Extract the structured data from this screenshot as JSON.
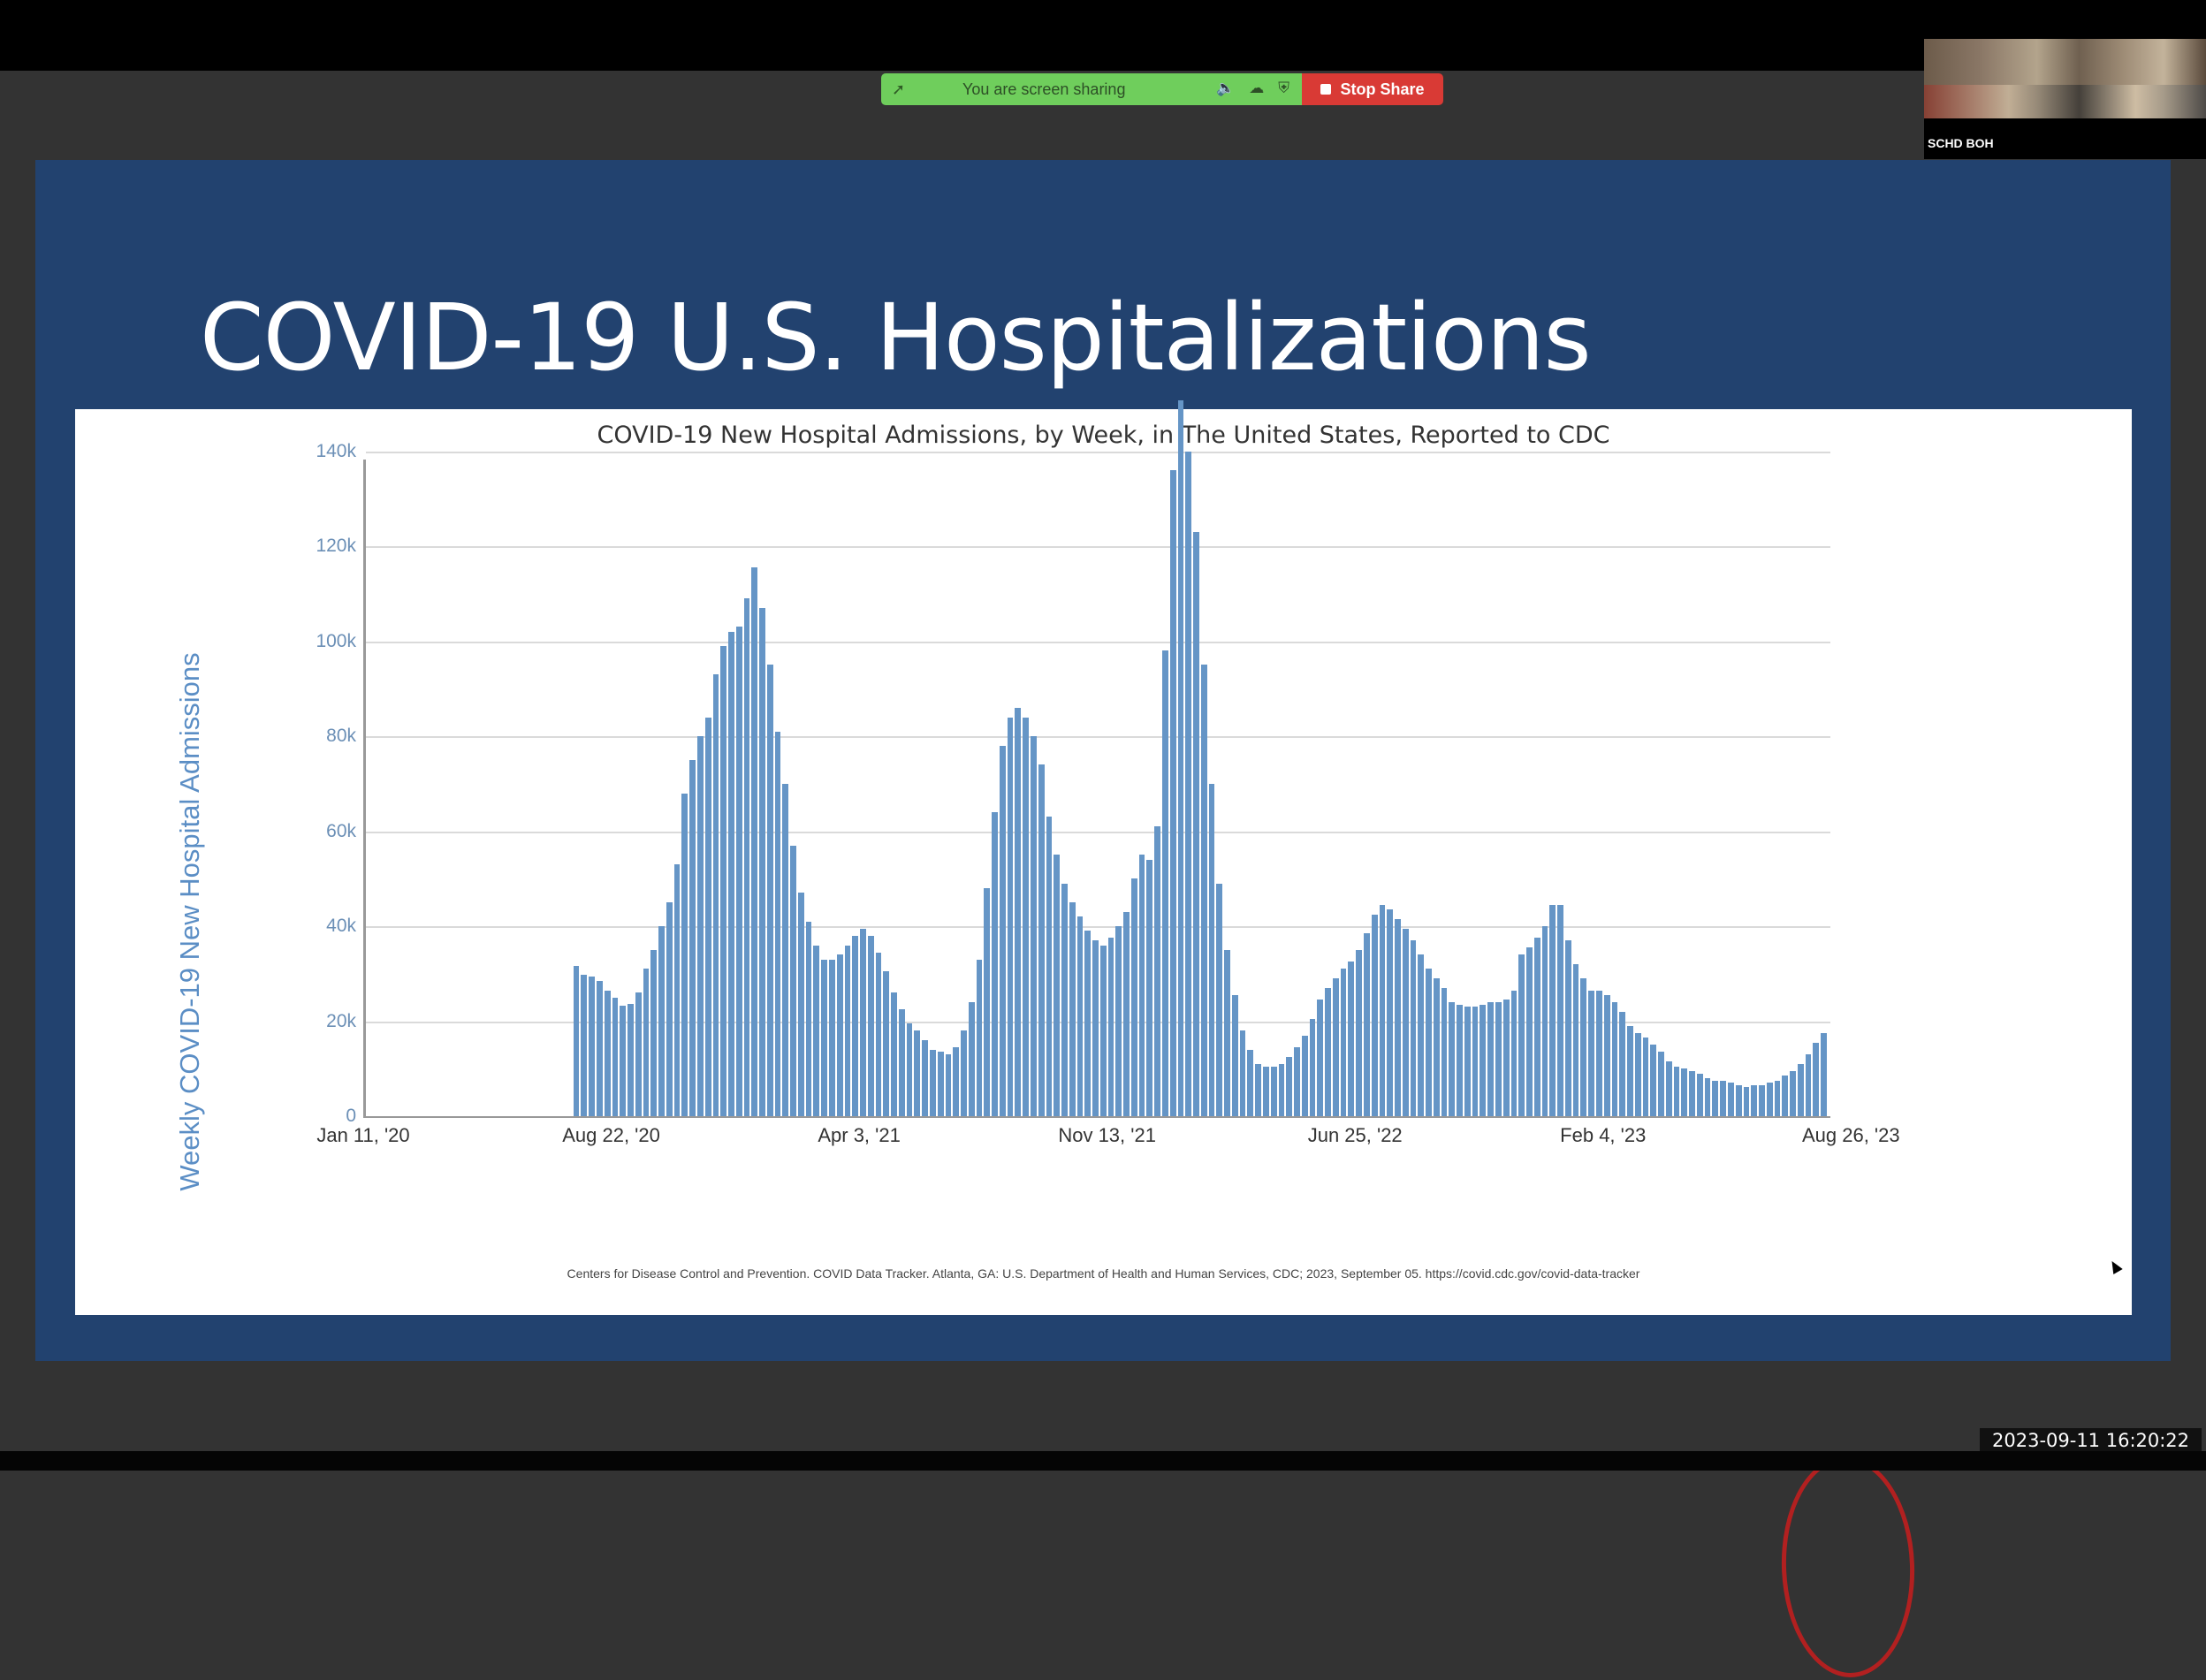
{
  "zoom_share_bar": {
    "status_text": "You are screen sharing",
    "stop_label": "Stop Share",
    "icons": [
      "share-leaf-icon",
      "speaker-icon",
      "cloud-icon",
      "shield-icon",
      "stop-square-icon"
    ],
    "green": "#6fce5c",
    "red": "#d93a35"
  },
  "video_tile": {
    "participant_name": "SCHD BOH"
  },
  "slide": {
    "title": "COVID-19 U.S. Hospitalizations",
    "background": "#22426f"
  },
  "chart": {
    "title": "COVID-19 New Hospital Admissions, by Week, in The United States, Reported to CDC",
    "ylabel": "Weekly COVID-19 New Hospital Admissions",
    "yticks": [
      "0",
      "20k",
      "40k",
      "60k",
      "80k",
      "100k",
      "120k",
      "140k"
    ],
    "xticks": [
      "Jan 11, '20",
      "Aug 22, '20",
      "Apr 3, '21",
      "Nov 13, '21",
      "Jun 25, '22",
      "Feb 4, '23",
      "Aug 26, '23"
    ],
    "footnote": "Centers for Disease Control and Prevention. COVID Data Tracker. Atlanta, GA: U.S. Department of Health and Human Services, CDC; 2023, September 05. https://covid.cdc.gov/covid-data-tracker",
    "bar_color": "#6595c6",
    "annotation_color": "#b22020"
  },
  "chart_data": {
    "type": "bar",
    "title": "COVID-19 New Hospital Admissions, by Week, in The United States, Reported to CDC",
    "xlabel": "",
    "ylabel": "Weekly COVID-19 New Hospital Admissions",
    "ylim": [
      0,
      157000
    ],
    "grid": true,
    "x_tick_labels": [
      "Jan 11, '20",
      "Aug 22, '20",
      "Apr 3, '21",
      "Nov 13, '21",
      "Jun 25, '22",
      "Feb 4, '23",
      "Aug 26, '23"
    ],
    "x_start_week": "Aug 1, '20",
    "x_end_week": "Aug 26, '23",
    "unit": "thousands",
    "annotation": "red ellipse around most recent weeks (uptick, Jul–Aug '23)",
    "values_k": [
      31.6,
      29.8,
      29.4,
      28.5,
      26.5,
      25,
      23.3,
      23.6,
      26,
      31,
      35,
      40,
      45,
      53,
      68,
      75,
      80,
      84,
      93,
      99,
      102,
      103,
      109,
      115.5,
      107,
      95,
      81,
      70,
      57,
      47,
      41,
      36,
      33,
      33,
      34,
      36,
      38,
      39.5,
      38,
      34.5,
      30.5,
      26,
      22.5,
      19.5,
      18,
      16,
      14,
      13.5,
      13,
      14.5,
      18,
      24,
      33,
      48,
      64,
      78,
      84,
      86,
      84,
      80,
      74,
      63,
      55,
      49,
      45,
      42,
      39,
      37,
      36,
      37.5,
      40,
      43,
      50,
      55,
      54,
      61,
      98,
      136,
      150.7,
      140,
      123,
      95,
      70,
      49,
      35,
      25.5,
      18,
      14,
      11,
      10.5,
      10.5,
      11,
      12.5,
      14.5,
      17,
      20.5,
      24.5,
      27,
      29,
      31,
      32.5,
      35,
      38.5,
      42.5,
      44.5,
      43.5,
      41.5,
      39.5,
      37,
      34,
      31,
      29,
      27,
      24,
      23.5,
      23,
      23,
      23.5,
      24,
      24,
      24.5,
      26.5,
      34,
      35.5,
      37.5,
      40,
      44.5,
      44.5,
      37,
      32,
      29,
      26.5,
      26.5,
      25.5,
      24,
      22,
      19,
      17.5,
      16.5,
      15,
      13.5,
      11.5,
      10.5,
      10,
      9.5,
      9,
      8,
      7.5,
      7.5,
      7,
      6.5,
      6.2,
      6.5,
      6.5,
      7,
      7.5,
      8.5,
      9.5,
      11,
      13,
      15.5,
      17.5
    ]
  },
  "timestamp": "2023-09-11  16:20:22"
}
